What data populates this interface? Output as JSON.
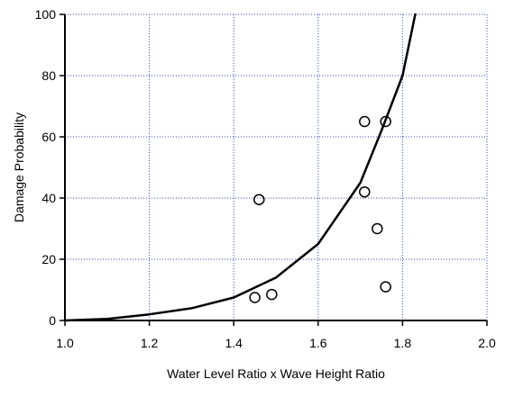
{
  "chart_data": {
    "type": "line",
    "title": "",
    "xlabel": "Water Level Ratio x Wave Height Ratio",
    "ylabel": "Damage Probability",
    "xlim": [
      1.0,
      2.0
    ],
    "ylim": [
      0,
      100
    ],
    "x_ticks": [
      1.0,
      1.2,
      1.4,
      1.6,
      1.8,
      2.0
    ],
    "x_tick_labels": [
      "1.0",
      "1.2",
      "1.4",
      "1.6",
      "1.8",
      "2.0"
    ],
    "y_ticks": [
      0,
      20,
      40,
      60,
      80,
      100
    ],
    "y_tick_labels": [
      "0",
      "20",
      "40",
      "60",
      "80",
      "100"
    ],
    "grid": true,
    "grid_color": "#3344cc",
    "legend": "none",
    "series": [
      {
        "kind": "line",
        "color": "#000000",
        "x": [
          1.0,
          1.1,
          1.2,
          1.3,
          1.4,
          1.5,
          1.6,
          1.7,
          1.75,
          1.8,
          1.83
        ],
        "y": [
          0,
          0.5,
          2,
          4,
          7.5,
          14,
          25,
          45,
          62,
          80,
          100
        ]
      },
      {
        "kind": "scatter",
        "marker": "open-circle",
        "color": "#000000",
        "x": [
          1.45,
          1.49,
          1.46,
          1.71,
          1.76,
          1.71,
          1.74,
          1.76
        ],
        "y": [
          7.5,
          8.5,
          39.5,
          65,
          65,
          42,
          30,
          11
        ]
      }
    ]
  }
}
